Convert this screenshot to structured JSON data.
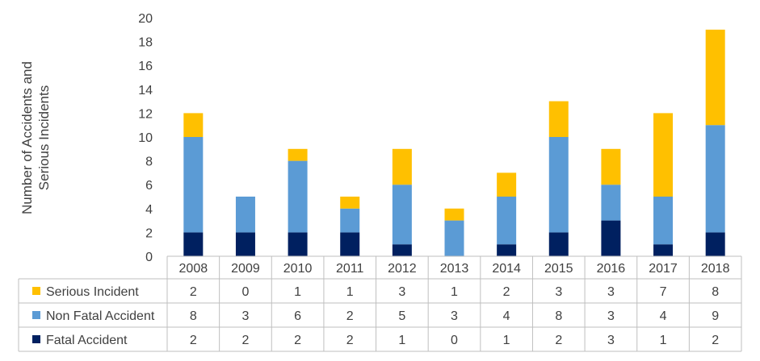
{
  "chart_data": {
    "type": "bar",
    "stacked": true,
    "ylabel_lines": [
      "Number of Accidents and",
      "Serious Incidents"
    ],
    "ylim": [
      0,
      20
    ],
    "yticks": [
      0,
      2,
      4,
      6,
      8,
      10,
      12,
      14,
      16,
      18,
      20
    ],
    "categories": [
      "2008",
      "2009",
      "2010",
      "2011",
      "2012",
      "2013",
      "2014",
      "2015",
      "2016",
      "2017",
      "2018"
    ],
    "series": [
      {
        "name": "Fatal Accident",
        "color": "#002060",
        "values": [
          2,
          2,
          2,
          2,
          1,
          0,
          1,
          2,
          3,
          1,
          2
        ]
      },
      {
        "name": "Non Fatal Accident",
        "color": "#5B9BD5",
        "values": [
          8,
          3,
          6,
          2,
          5,
          3,
          4,
          8,
          3,
          4,
          9
        ]
      },
      {
        "name": "Serious Incident",
        "color": "#FFC000",
        "values": [
          2,
          0,
          1,
          1,
          3,
          1,
          2,
          3,
          3,
          7,
          8
        ]
      }
    ],
    "legend_position": "data-table-left",
    "grid": false
  }
}
